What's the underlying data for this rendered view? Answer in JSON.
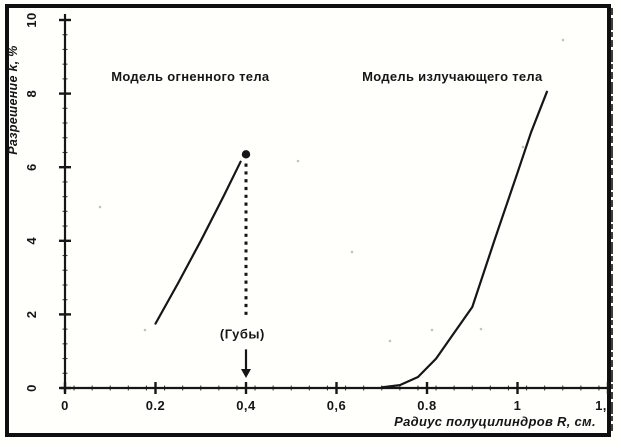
{
  "chart_data": {
    "type": "line",
    "title": "",
    "xlabel": "Радиус полуцилиндров R, см.",
    "ylabel": "Разрешение k, %",
    "xlim": [
      0,
      1.2
    ],
    "ylim": [
      0,
      10
    ],
    "grid": false,
    "legend_position": "inline-labels",
    "x_ticks": [
      {
        "value": 0,
        "label": "0"
      },
      {
        "value": 0.2,
        "label": "0.2"
      },
      {
        "value": 0.4,
        "label": "0,4"
      },
      {
        "value": 0.6,
        "label": "0,6"
      },
      {
        "value": 0.8,
        "label": "0.8"
      },
      {
        "value": 1.0,
        "label": "1"
      },
      {
        "value": 1.2,
        "label": "1,"
      }
    ],
    "y_ticks": [
      {
        "value": 0,
        "label": "0"
      },
      {
        "value": 2,
        "label": "2"
      },
      {
        "value": 4,
        "label": "4"
      },
      {
        "value": 6,
        "label": "6"
      },
      {
        "value": 8,
        "label": "8"
      },
      {
        "value": 10,
        "label": "10"
      }
    ],
    "series": [
      {
        "name": "Модель огненного тела",
        "points": [
          [
            0.2,
            1.75
          ],
          [
            0.25,
            2.85
          ],
          [
            0.3,
            4.0
          ],
          [
            0.35,
            5.2
          ],
          [
            0.388,
            6.15
          ]
        ],
        "end_marker": {
          "shape": "dot",
          "x": 0.4,
          "y": 6.35
        }
      },
      {
        "name": "Модель излучающего тела",
        "points": [
          [
            0.7,
            0.02
          ],
          [
            0.74,
            0.08
          ],
          [
            0.78,
            0.3
          ],
          [
            0.82,
            0.8
          ],
          [
            0.86,
            1.5
          ],
          [
            0.9,
            2.2
          ],
          [
            0.95,
            4.05
          ],
          [
            1.0,
            5.85
          ],
          [
            1.03,
            6.95
          ],
          [
            1.065,
            8.05
          ]
        ]
      }
    ],
    "series_labels": [
      {
        "text": "Модель огненного тела",
        "x": 0.277,
        "y": 8.45
      },
      {
        "text": "Модель излучающего тела",
        "x": 0.856,
        "y": 8.45
      }
    ],
    "annotation": {
      "text": "(Губы)",
      "text_x": 0.392,
      "text_y": 1.45,
      "line_x": 0.4,
      "dashed_line": {
        "y_from": 6.1,
        "y_to": 1.95
      },
      "arrow": {
        "y_from": 1.05,
        "y_to": 0.3
      }
    },
    "colors": {
      "ink": "#1b1b1b",
      "background": "#fbfaf6",
      "frame": "#141414"
    }
  }
}
